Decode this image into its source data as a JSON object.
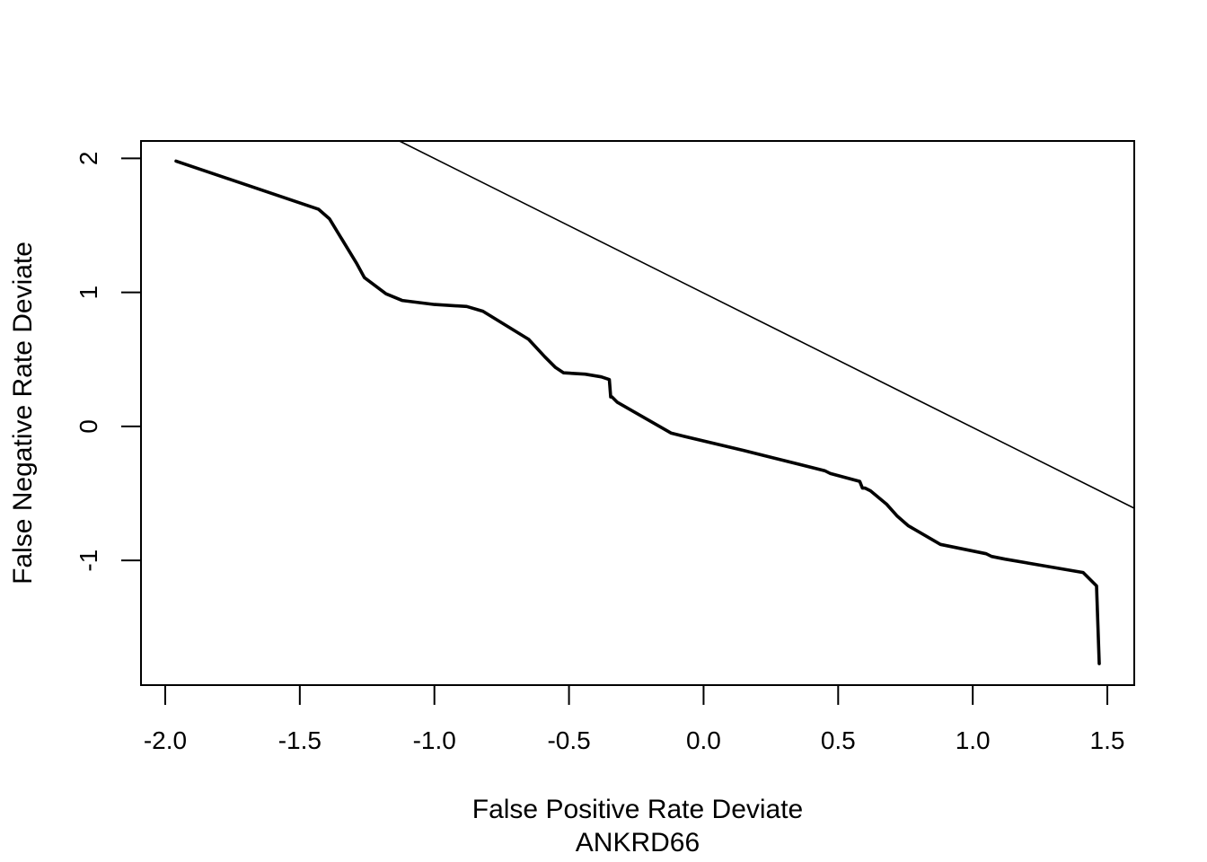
{
  "chart_data": {
    "type": "line",
    "title": "",
    "xlabel": "False Positive Rate Deviate",
    "subtitle": "ANKRD66",
    "ylabel": "False Negative Rate Deviate",
    "xlim": [
      -2.09,
      1.6
    ],
    "ylim": [
      -1.93,
      2.13
    ],
    "xticks": [
      -2.0,
      -1.5,
      -1.0,
      -0.5,
      0.0,
      0.5,
      1.0,
      1.5
    ],
    "xtick_labels": [
      "-2.0",
      "-1.5",
      "-1.0",
      "-0.5",
      "0.0",
      "0.5",
      "1.0",
      "1.5"
    ],
    "yticks": [
      -1,
      0,
      1,
      2
    ],
    "ytick_labels": [
      "-1",
      "0",
      "1",
      "2"
    ],
    "grid": false,
    "series": [
      {
        "kind": "curve",
        "color": "#000000",
        "x": [
          -1.96,
          -1.43,
          -1.39,
          -1.29,
          -1.26,
          -1.18,
          -1.12,
          -1.08,
          -1.0,
          -0.88,
          -0.82,
          -0.65,
          -0.59,
          -0.55,
          -0.52,
          -0.44,
          -0.38,
          -0.35,
          -0.345,
          -0.34,
          -0.32,
          -0.12,
          -0.08,
          0.15,
          0.45,
          0.47,
          0.58,
          0.59,
          0.6,
          0.62,
          0.68,
          0.72,
          0.76,
          0.88,
          1.05,
          1.07,
          1.12,
          1.41,
          1.46,
          1.47
        ],
        "y": [
          1.98,
          1.62,
          1.55,
          1.22,
          1.11,
          0.99,
          0.94,
          0.93,
          0.91,
          0.895,
          0.86,
          0.65,
          0.52,
          0.44,
          0.4,
          0.39,
          0.37,
          0.35,
          0.22,
          0.22,
          0.18,
          -0.05,
          -0.07,
          -0.18,
          -0.33,
          -0.35,
          -0.41,
          -0.46,
          -0.46,
          -0.48,
          -0.58,
          -0.67,
          -0.74,
          -0.88,
          -0.95,
          -0.97,
          -0.99,
          -1.09,
          -1.19,
          -1.77
        ]
      },
      {
        "kind": "reference-line",
        "color": "#000000",
        "x": [
          -1.13,
          1.6
        ],
        "y": [
          2.13,
          -0.61
        ]
      }
    ]
  }
}
